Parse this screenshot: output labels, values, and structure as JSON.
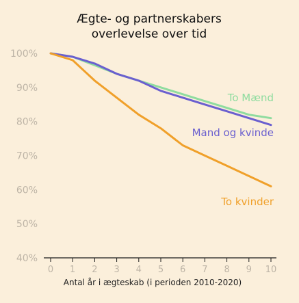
{
  "chart_data": {
    "type": "line",
    "title_lines": [
      "Ægte- og partnerskabers",
      "overlevelse over tid"
    ],
    "xlabel": "Antal år i ægteskab (i perioden 2010-2020)",
    "ylabel": "",
    "x": [
      0,
      1,
      2,
      3,
      4,
      5,
      6,
      7,
      8,
      9,
      10
    ],
    "x_tick_labels": [
      "0",
      "1",
      "2",
      "3",
      "4",
      "5",
      "6",
      "7",
      "8",
      "9",
      "10"
    ],
    "y_tick_values": [
      40,
      50,
      60,
      70,
      80,
      90,
      100
    ],
    "y_tick_labels": [
      "40%",
      "50%",
      "60%",
      "70%",
      "80%",
      "90%",
      "100%"
    ],
    "xlim": [
      0,
      10
    ],
    "ylim": [
      40,
      100
    ],
    "grid": false,
    "series": [
      {
        "name": "To Mænd",
        "color": "#8fdc9f",
        "values": [
          100,
          99,
          96.5,
          94,
          92,
          90,
          88,
          86,
          84,
          82,
          81
        ]
      },
      {
        "name": "Mand og kvinde",
        "color": "#6a5fcf",
        "values": [
          100,
          99,
          97,
          94,
          92,
          89,
          87,
          85,
          83,
          81,
          79
        ]
      },
      {
        "name": "To kvinder",
        "color": "#f0a02a",
        "values": [
          100,
          98,
          92,
          87,
          82,
          78,
          73,
          70,
          67,
          64,
          61
        ]
      }
    ]
  },
  "colors": {
    "background": "#fbefdb",
    "title": "#111111",
    "tick_label": "#bdb4a6",
    "axis_title": "#222222",
    "axis_line": "#1a1a1a"
  }
}
